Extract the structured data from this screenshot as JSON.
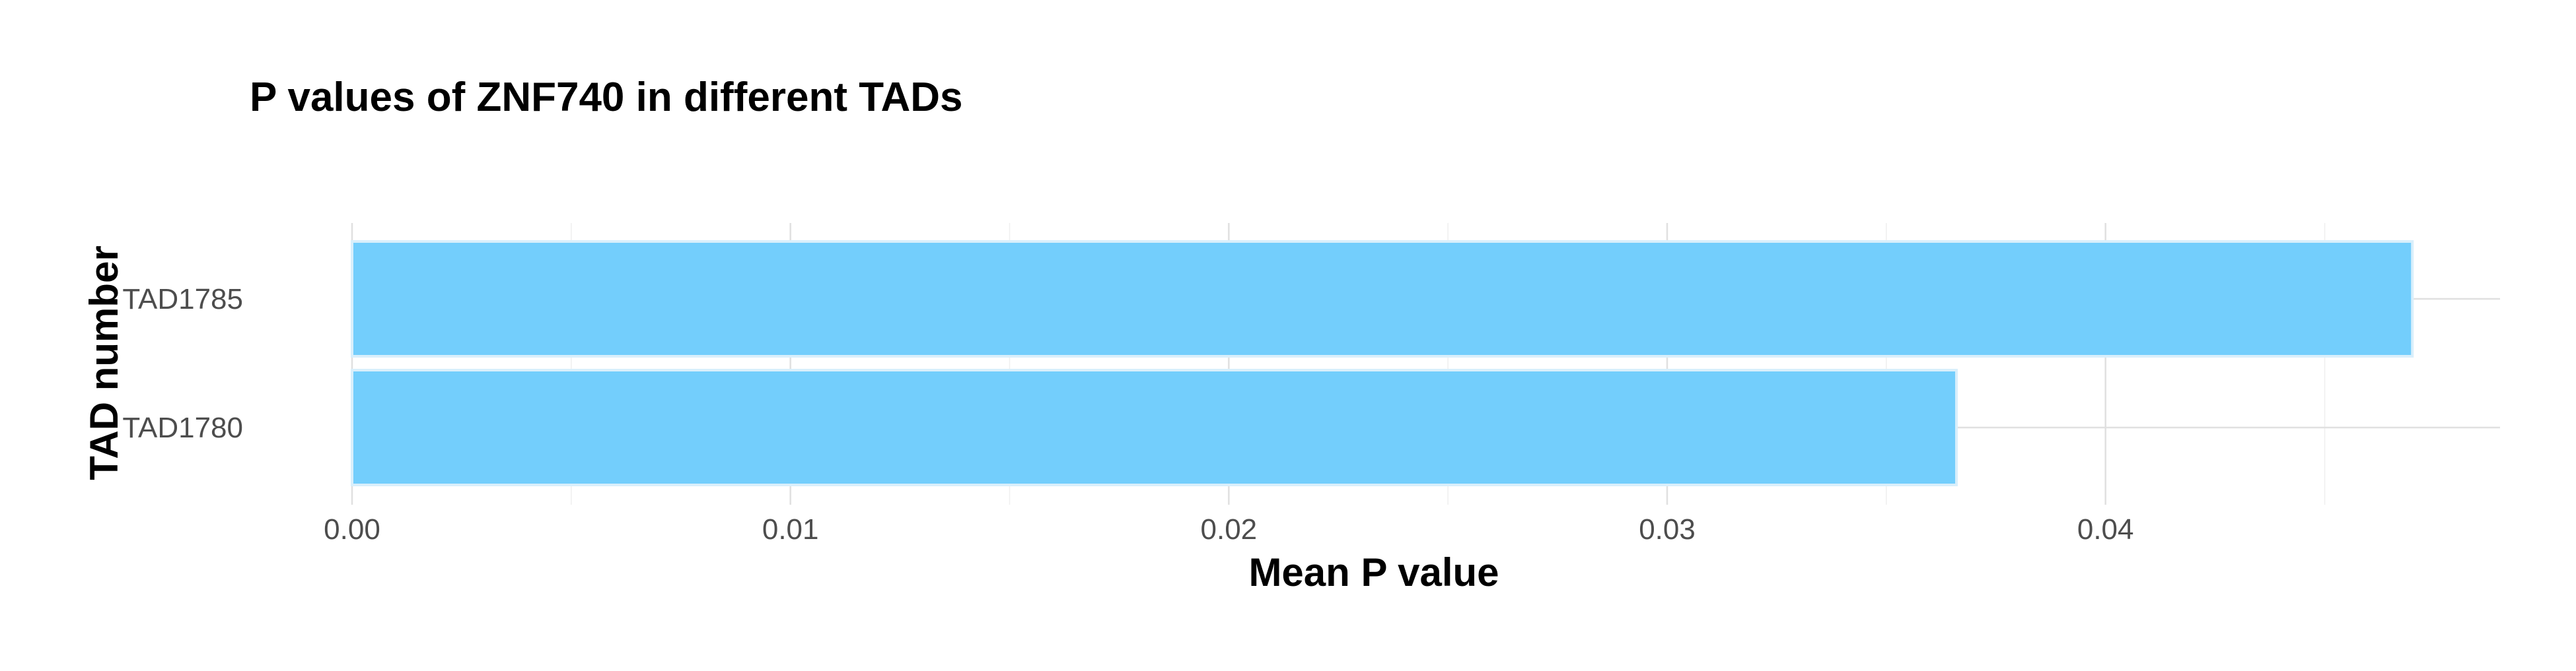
{
  "chart_data": {
    "type": "bar",
    "orientation": "horizontal",
    "title": "P values of ZNF740 in different TADs",
    "xlabel": "Mean P value",
    "ylabel": "TAD number",
    "categories": [
      "TAD1785",
      "TAD1780"
    ],
    "values": [
      0.047,
      0.0366
    ],
    "xlim": [
      0,
      0.049
    ],
    "xticks": [
      0,
      0.01,
      0.02,
      0.03,
      0.04
    ],
    "xtick_labels": [
      "0.00",
      "0.01",
      "0.02",
      "0.03",
      "0.04"
    ],
    "grid": true,
    "legend": "none",
    "colors": {
      "bar_fill": "#73cefc",
      "bar_border": "#d9effb"
    }
  }
}
